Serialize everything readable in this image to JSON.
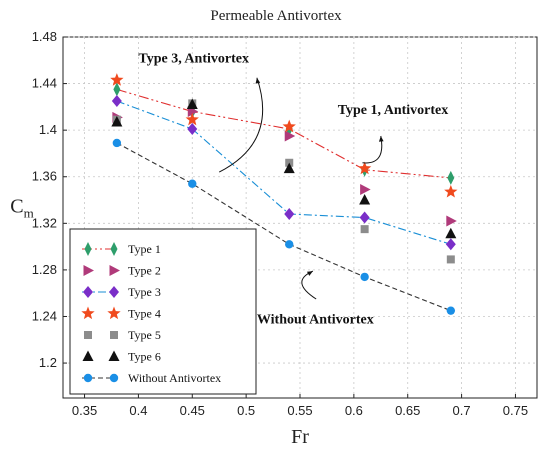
{
  "chart_data": {
    "type": "scatter",
    "title": "Permeable Antivortex",
    "xlabel": "Fr",
    "ylabel_main": "C",
    "ylabel_sub": "m",
    "xlim": [
      0.33,
      0.77
    ],
    "ylim": [
      1.17,
      1.48
    ],
    "xticks": [
      0.35,
      0.4,
      0.45,
      0.5,
      0.55,
      0.6,
      0.65,
      0.7,
      0.75
    ],
    "xtick_labels": [
      "0.35",
      "0.4",
      "0.45",
      "0.5",
      "0.55",
      "0.6",
      "0.65",
      "0.7",
      "0.75"
    ],
    "yticks": [
      1.2,
      1.24,
      1.28,
      1.32,
      1.36,
      1.4,
      1.44,
      1.48
    ],
    "ytick_labels": [
      "1.2",
      "1.24",
      "1.28",
      "1.32",
      "1.36",
      "1.4",
      "1.44",
      "1.48"
    ],
    "legend_position": "bottom-left",
    "series": [
      {
        "name": "Type 1",
        "marker": "diamond-thin",
        "color": "#2e9e6b",
        "line": "#e03030",
        "dash": "10,3,2,3,2,3",
        "x": [
          0.38,
          0.45,
          0.54,
          0.61,
          0.69
        ],
        "y": [
          1.435,
          1.416,
          1.401,
          1.366,
          1.359
        ]
      },
      {
        "name": "Type 2",
        "marker": "triangle-right",
        "color": "#b03a7a",
        "line": null,
        "x": [
          0.38,
          0.45,
          0.54,
          0.61,
          0.69
        ],
        "y": [
          1.411,
          1.416,
          1.395,
          1.349,
          1.322
        ]
      },
      {
        "name": "Type 3",
        "marker": "diamond",
        "color": "#7a2ec8",
        "line": "#1a8fd6",
        "dash": "8,3,2,3",
        "x": [
          0.38,
          0.45,
          0.54,
          0.61,
          0.69
        ],
        "y": [
          1.425,
          1.401,
          1.328,
          1.325,
          1.302
        ]
      },
      {
        "name": "Type 4",
        "marker": "star",
        "color": "#f04a1e",
        "line": null,
        "x": [
          0.38,
          0.45,
          0.54,
          0.61,
          0.69
        ],
        "y": [
          1.443,
          1.409,
          1.403,
          1.367,
          1.347
        ]
      },
      {
        "name": "Type 5",
        "marker": "square",
        "color": "#8c8c8c",
        "line": null,
        "x": [
          0.38,
          0.45,
          0.54,
          0.61,
          0.69
        ],
        "y": [
          1.409,
          1.423,
          1.372,
          1.315,
          1.289
        ]
      },
      {
        "name": "Type 6",
        "marker": "triangle-up",
        "color": "#111111",
        "line": null,
        "x": [
          0.38,
          0.45,
          0.54,
          0.61,
          0.69
        ],
        "y": [
          1.407,
          1.422,
          1.367,
          1.34,
          1.311
        ]
      },
      {
        "name": "Without Antivortex",
        "marker": "circle",
        "color": "#1a8fe6",
        "line": "#333333",
        "dash": "5,3",
        "x": [
          0.38,
          0.45,
          0.54,
          0.61,
          0.69
        ],
        "y": [
          1.389,
          1.354,
          1.302,
          1.274,
          1.245
        ]
      }
    ],
    "annotations": [
      {
        "text": "Type 3, Antivortex"
      },
      {
        "text": "Type 1, Antivortex"
      },
      {
        "text": "Without Antivortex"
      }
    ]
  }
}
